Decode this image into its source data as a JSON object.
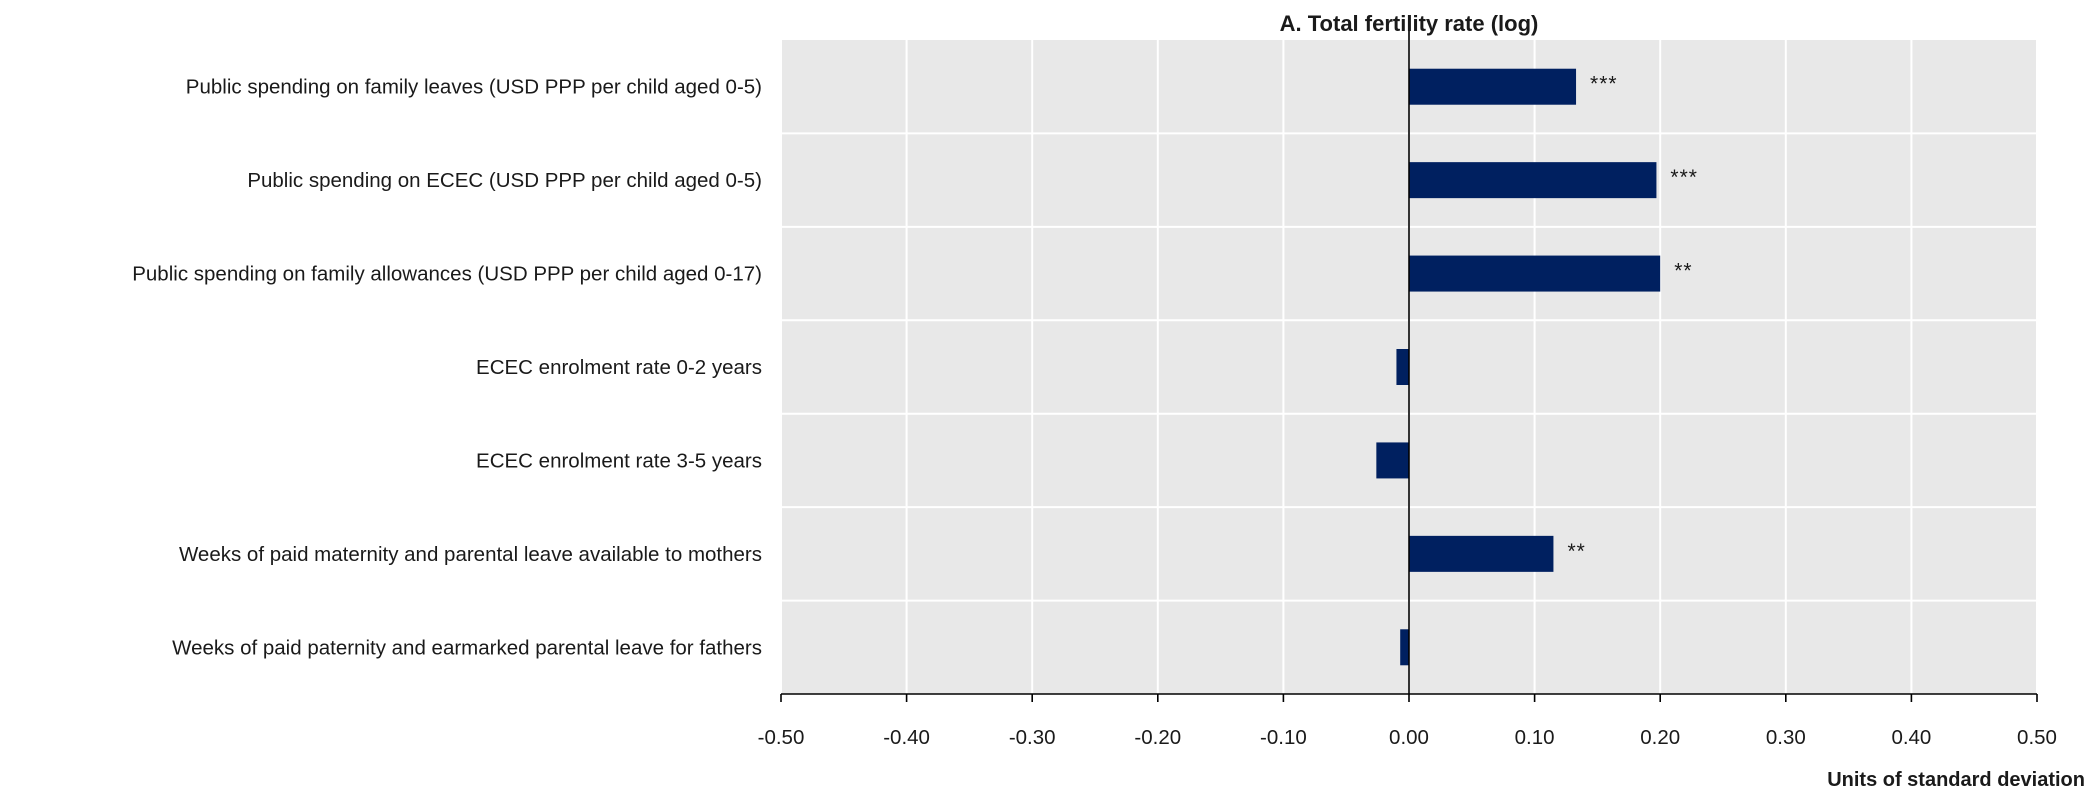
{
  "chart_data": {
    "type": "bar",
    "orientation": "horizontal",
    "title": "A. Total fertility rate (log)",
    "xlabel": "Units of standard deviation",
    "ylabel": "",
    "xlim": [
      -0.5,
      0.5
    ],
    "x_ticks": [
      -0.5,
      -0.4,
      -0.3,
      -0.2,
      -0.1,
      0.0,
      0.1,
      0.2,
      0.3,
      0.4,
      0.5
    ],
    "x_tick_labels": [
      "-0.50",
      "-0.40",
      "-0.30",
      "-0.20",
      "-0.10",
      "0.00",
      "0.10",
      "0.20",
      "0.30",
      "0.40",
      "0.50"
    ],
    "grid": true,
    "legend": "none",
    "bar_color": "#002060",
    "plot_background": "#e8e8e8",
    "categories": [
      "Public spending on family leaves (USD PPP per child aged 0-5)",
      "Public spending on ECEC (USD PPP per child aged 0-5)",
      "Public spending on family allowances (USD PPP per child aged 0-17)",
      "ECEC enrolment rate 0-2 years",
      "ECEC enrolment rate 3-5 years",
      "Weeks of paid maternity and parental leave available to mothers",
      "Weeks of paid paternity and earmarked parental leave for fathers"
    ],
    "values": [
      0.133,
      0.197,
      0.2,
      -0.01,
      -0.026,
      0.115,
      -0.007
    ],
    "significance": [
      "***",
      "***",
      "**",
      "",
      "",
      "**",
      ""
    ]
  }
}
